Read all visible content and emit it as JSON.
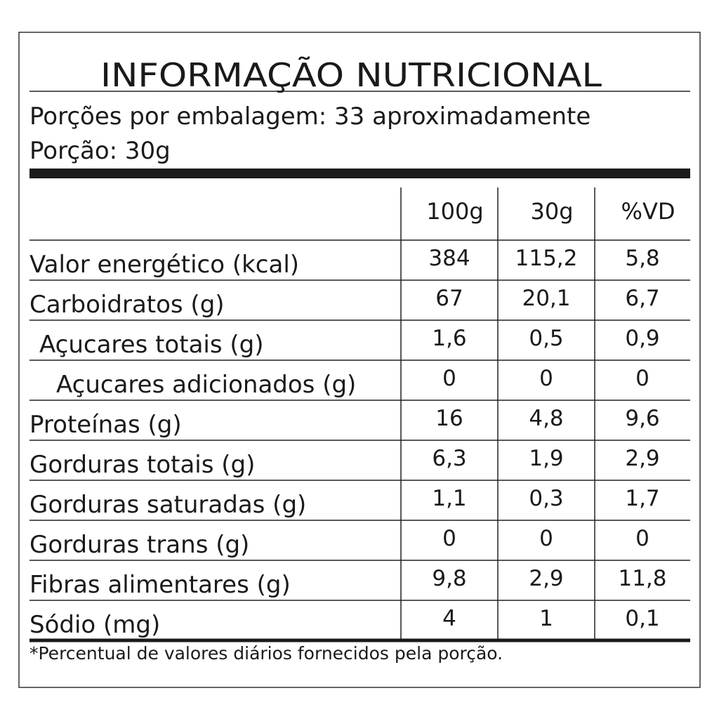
{
  "title": "INFORMAÇÃO NUTRICIONAL",
  "servings_per_package": "Porções por embalagem: 33 aproximadamente",
  "serving_size": "Porção: 30g",
  "table": {
    "header": [
      "100g",
      "30g",
      "%VD"
    ],
    "rows": [
      [
        "Valor energético (kcal)",
        "384",
        "115,2",
        "5,8"
      ],
      [
        "Carboidratos (g)",
        "67",
        "20,1",
        "6,7"
      ],
      [
        "Açucares totais (g)",
        "1,6",
        "0,5",
        "0,9"
      ],
      [
        "Açucares adicionados (g)",
        "0",
        "0",
        "0"
      ],
      [
        "Proteínas (g)",
        "16",
        "4,8",
        "9,6"
      ],
      [
        "Gorduras totais (g)",
        "6,3",
        "1,9",
        "2,9"
      ],
      [
        "Gorduras saturadas (g)",
        "1,1",
        "0,3",
        "1,7"
      ],
      [
        "Gorduras trans (g)",
        "0",
        "0",
        "0"
      ],
      [
        "Fibras alimentares (g)",
        "9,8",
        "2,9",
        "11,8"
      ],
      [
        "Sódio (mg)",
        "4",
        "1",
        "0,1"
      ]
    ]
  },
  "footnote": "*Percentual de valores diários fornecidos pela porção."
}
